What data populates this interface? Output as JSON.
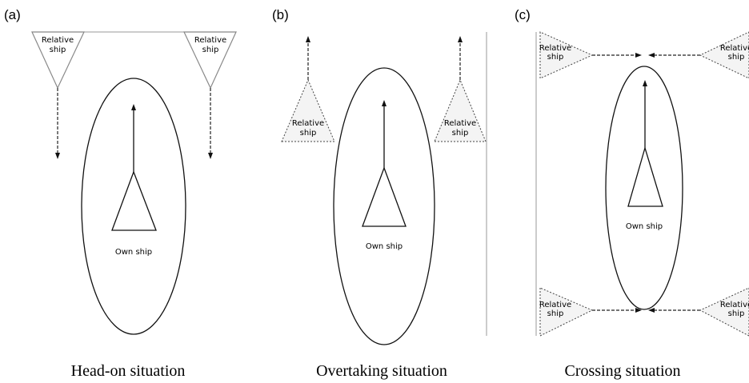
{
  "panels": [
    {
      "label": "(a)",
      "caption": "Head-on situation",
      "own_ship": "Own ship",
      "relative_ships": [
        [
          "Relative",
          "ship"
        ],
        [
          "Relative",
          "ship"
        ]
      ]
    },
    {
      "label": "(b)",
      "caption": "Overtaking situation",
      "own_ship": "Own ship",
      "relative_ships": [
        [
          "Relative",
          "ship"
        ],
        [
          "Relative",
          "ship"
        ]
      ]
    },
    {
      "label": "(c)",
      "caption": "Crossing situation",
      "own_ship": "Own ship",
      "relative_ships": [
        [
          "Relative",
          "ship"
        ],
        [
          "Relative",
          "ship"
        ],
        [
          "Relative",
          "ship"
        ],
        [
          "Relative",
          "ship"
        ]
      ]
    }
  ]
}
